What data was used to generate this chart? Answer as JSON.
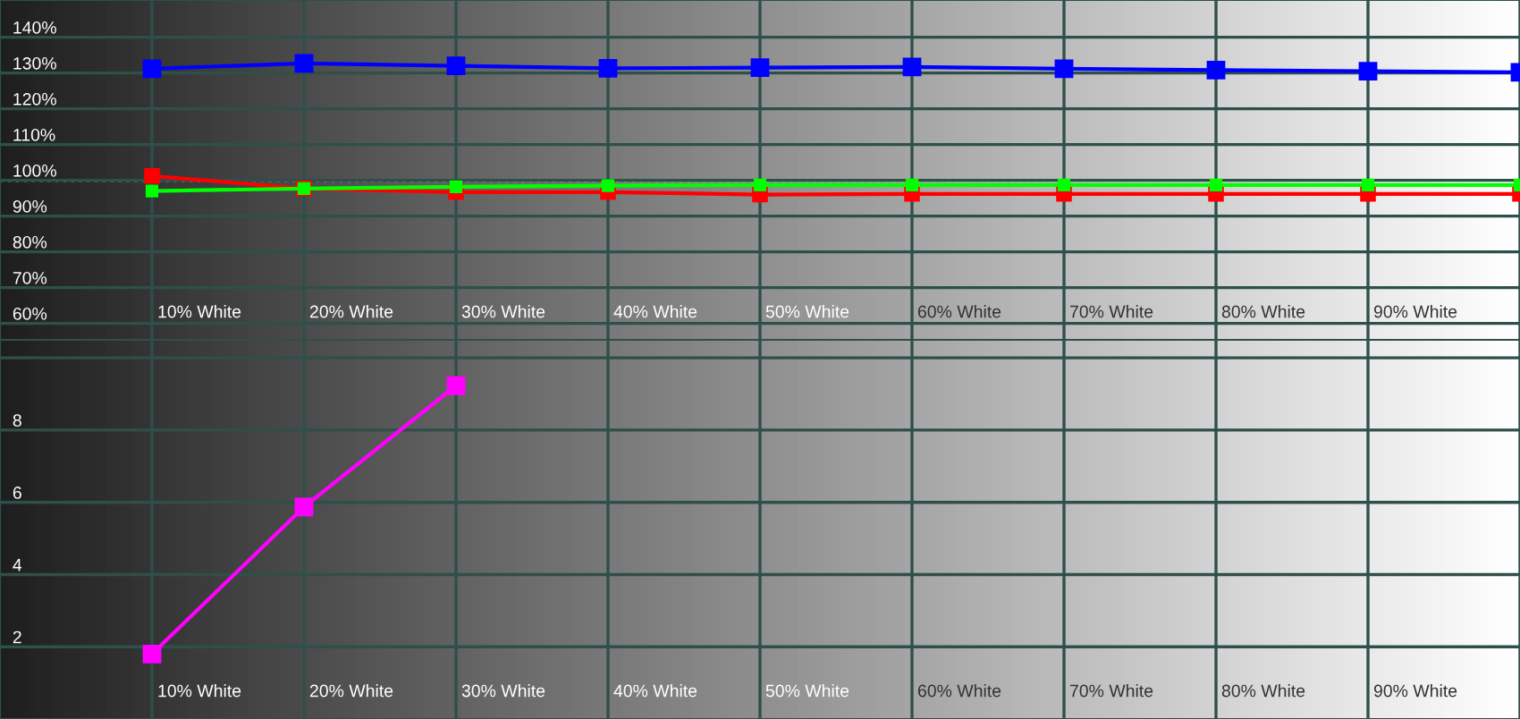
{
  "chart_data": [
    {
      "type": "line",
      "categories": [
        "10% White",
        "20% White",
        "30% White",
        "40% White",
        "50% White",
        "60% White",
        "70% White",
        "80% White",
        "90% White",
        null
      ],
      "series": [
        {
          "name": null,
          "color": "#0000ff",
          "values": [
            131.2,
            132.7,
            132.0,
            131.3,
            131.5,
            131.7,
            131.2,
            130.8,
            130.5,
            130.2
          ]
        },
        {
          "name": null,
          "color": "#ff0000",
          "values": [
            101.2,
            97.7,
            96.7,
            96.7,
            96.0,
            96.2,
            96.2,
            96.2,
            96.2,
            96.2
          ]
        },
        {
          "name": null,
          "color": "#00ff00",
          "values": [
            97.0,
            97.7,
            98.2,
            98.5,
            98.7,
            98.7,
            98.7,
            98.7,
            98.7,
            98.7
          ]
        }
      ],
      "ylim": [
        55.4,
        150.4
      ],
      "yticks": [
        {
          "value": 60,
          "label": "60%"
        },
        {
          "value": 70,
          "label": "70%"
        },
        {
          "value": 80,
          "label": "80%"
        },
        {
          "value": 90,
          "label": "90%"
        },
        {
          "value": 100,
          "label": "100%"
        },
        {
          "value": 110,
          "label": "110%"
        },
        {
          "value": 120,
          "label": "120%"
        },
        {
          "value": 130,
          "label": "130%"
        },
        {
          "value": 140,
          "label": "140%"
        }
      ],
      "ref_lines": [
        {
          "axis": "y",
          "value": 100,
          "label": null,
          "color": "#ffffff",
          "line_style": "dotted"
        }
      ],
      "grid": true,
      "marker": "square",
      "line_style": "solid"
    },
    {
      "type": "line",
      "categories": [
        "10% White",
        "20% White",
        "30% White",
        "40% White",
        "50% White",
        "60% White",
        "70% White",
        "80% White",
        "90% White",
        null
      ],
      "series": [
        {
          "name": null,
          "color": "#ff00ff",
          "values": [
            1.8,
            5.87,
            9.23,
            null,
            null,
            null,
            null,
            null,
            null,
            null
          ]
        }
      ],
      "ylim": [
        0,
        10.5
      ],
      "yticks": [
        2,
        4,
        6,
        8,
        {
          "value": 10,
          "label": null
        }
      ],
      "grid": true,
      "marker": "square",
      "line_style": "solid"
    }
  ]
}
